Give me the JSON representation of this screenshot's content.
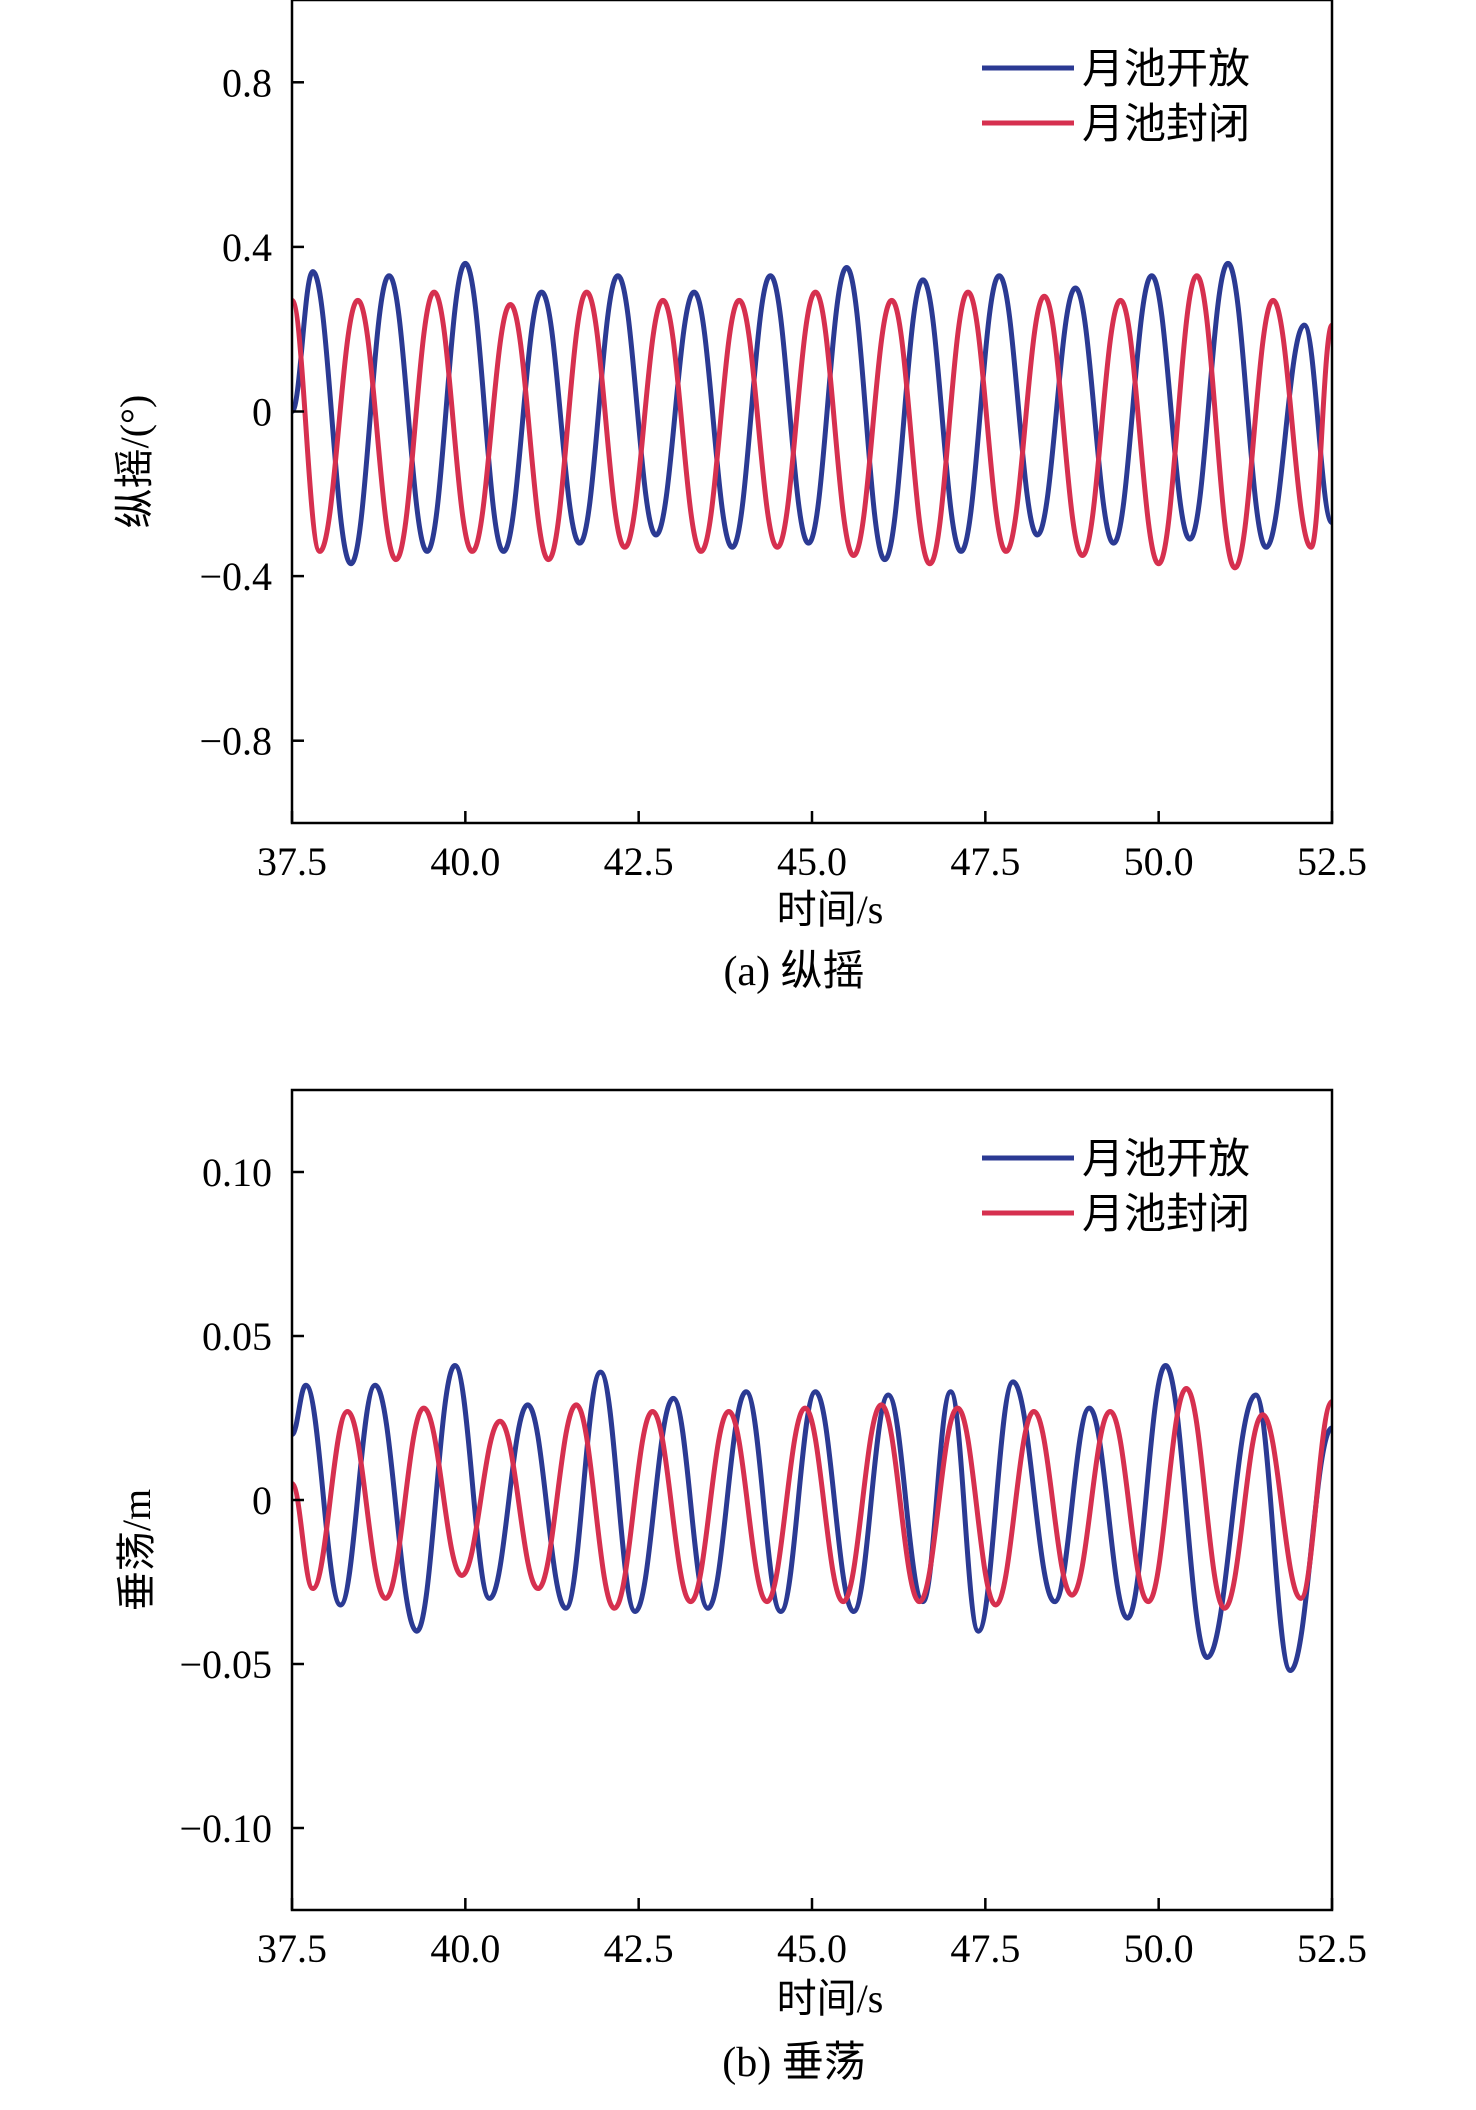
{
  "chart_data": [
    {
      "type": "line",
      "caption": "(a) 纵摇",
      "xlabel": "时间/s",
      "ylabel": "纵摇/(°)",
      "xlim": [
        37.5,
        52.5
      ],
      "ylim": [
        -1.0,
        1.0
      ],
      "xticks": [
        37.5,
        40.0,
        42.5,
        45.0,
        47.5,
        50.0,
        52.5
      ],
      "xtick_labels": [
        "37.5",
        "40.0",
        "42.5",
        "45.0",
        "47.5",
        "50.0",
        "52.5"
      ],
      "yticks": [
        0.8,
        0.4,
        0,
        -0.4,
        -0.8
      ],
      "ytick_labels": [
        "0.8",
        "0.4",
        "0",
        "−0.4",
        "−0.8"
      ],
      "legend_position": "top-right",
      "series": [
        {
          "name": "月池开放",
          "color": "#2b3a93",
          "x": [
            37.5,
            37.8,
            38.35,
            38.9,
            39.45,
            40.0,
            40.55,
            41.1,
            41.65,
            42.2,
            42.75,
            43.3,
            43.85,
            44.4,
            44.95,
            45.5,
            46.05,
            46.6,
            47.15,
            47.7,
            48.25,
            48.8,
            49.35,
            49.9,
            50.45,
            51.0,
            51.55,
            52.1,
            52.5
          ],
          "y": [
            0.0,
            0.34,
            -0.37,
            0.33,
            -0.34,
            0.36,
            -0.34,
            0.29,
            -0.32,
            0.33,
            -0.3,
            0.29,
            -0.33,
            0.33,
            -0.32,
            0.35,
            -0.36,
            0.32,
            -0.34,
            0.33,
            -0.3,
            0.3,
            -0.32,
            0.33,
            -0.31,
            0.36,
            -0.33,
            0.21,
            -0.27
          ]
        },
        {
          "name": "月池封闭",
          "color": "#d6304f",
          "x": [
            37.5,
            37.9,
            38.45,
            39.0,
            39.55,
            40.1,
            40.65,
            41.2,
            41.75,
            42.3,
            42.85,
            43.4,
            43.95,
            44.5,
            45.05,
            45.6,
            46.15,
            46.7,
            47.25,
            47.8,
            48.35,
            48.9,
            49.45,
            50.0,
            50.55,
            51.1,
            51.65,
            52.2,
            52.5
          ],
          "y": [
            0.27,
            -0.34,
            0.27,
            -0.36,
            0.29,
            -0.34,
            0.26,
            -0.36,
            0.29,
            -0.33,
            0.27,
            -0.34,
            0.27,
            -0.33,
            0.29,
            -0.35,
            0.27,
            -0.37,
            0.29,
            -0.34,
            0.28,
            -0.35,
            0.27,
            -0.37,
            0.33,
            -0.38,
            0.27,
            -0.33,
            0.21
          ]
        }
      ]
    },
    {
      "type": "line",
      "caption": "(b) 垂荡",
      "xlabel": "时间/s",
      "ylabel": "垂荡/m",
      "xlim": [
        37.5,
        52.5
      ],
      "ylim": [
        -0.125,
        0.125
      ],
      "xticks": [
        37.5,
        40.0,
        42.5,
        45.0,
        47.5,
        50.0,
        52.5
      ],
      "xtick_labels": [
        "37.5",
        "40.0",
        "42.5",
        "45.0",
        "47.5",
        "50.0",
        "52.5"
      ],
      "yticks": [
        0.1,
        0.05,
        0,
        -0.05,
        -0.1
      ],
      "ytick_labels": [
        "0.10",
        "0.05",
        "0",
        "−0.05",
        "−0.10"
      ],
      "legend_position": "top-right",
      "series": [
        {
          "name": "月池开放",
          "color": "#2b3a93",
          "x": [
            37.5,
            37.7,
            38.2,
            38.7,
            39.3,
            39.85,
            40.35,
            40.9,
            41.45,
            41.95,
            42.45,
            43.0,
            43.5,
            44.05,
            44.55,
            45.05,
            45.6,
            46.1,
            46.6,
            47.0,
            47.4,
            47.9,
            48.5,
            49.0,
            49.55,
            50.1,
            50.7,
            51.4,
            51.9,
            52.5
          ],
          "y": [
            0.02,
            0.035,
            -0.032,
            0.035,
            -0.04,
            0.041,
            -0.03,
            0.029,
            -0.033,
            0.039,
            -0.034,
            0.031,
            -0.033,
            0.033,
            -0.034,
            0.033,
            -0.034,
            0.032,
            -0.031,
            0.033,
            -0.04,
            0.036,
            -0.031,
            0.028,
            -0.036,
            0.041,
            -0.048,
            0.032,
            -0.052,
            0.022
          ]
        },
        {
          "name": "月池封闭",
          "color": "#d6304f",
          "x": [
            37.5,
            37.8,
            38.3,
            38.85,
            39.4,
            39.95,
            40.5,
            41.05,
            41.6,
            42.15,
            42.7,
            43.25,
            43.8,
            44.35,
            44.9,
            45.45,
            46.0,
            46.55,
            47.1,
            47.65,
            48.2,
            48.75,
            49.3,
            49.85,
            50.4,
            50.95,
            51.5,
            52.05,
            52.5
          ],
          "y": [
            0.005,
            -0.027,
            0.027,
            -0.03,
            0.028,
            -0.023,
            0.024,
            -0.027,
            0.029,
            -0.033,
            0.027,
            -0.031,
            0.027,
            -0.031,
            0.028,
            -0.031,
            0.029,
            -0.031,
            0.028,
            -0.032,
            0.027,
            -0.029,
            0.027,
            -0.031,
            0.034,
            -0.033,
            0.026,
            -0.03,
            0.03
          ]
        }
      ]
    }
  ]
}
